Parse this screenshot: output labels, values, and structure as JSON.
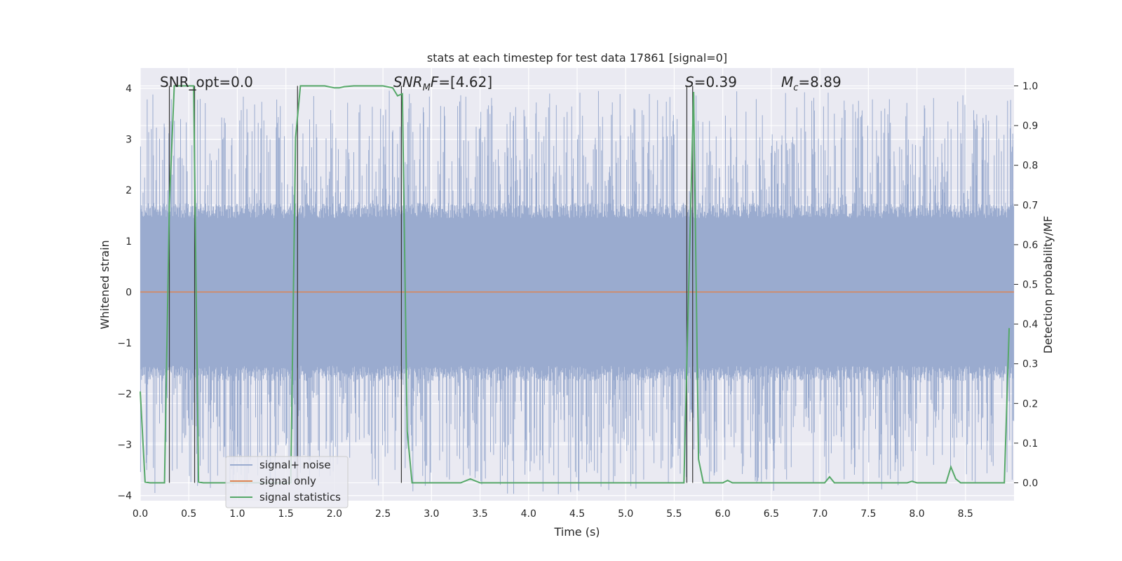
{
  "chart_data": {
    "type": "line",
    "title": "stats at each timestep for test data 17861 [signal=0]",
    "xlabel": "Time (s)",
    "ylabel": "Whitened strain",
    "ylabel_right": "Detection probability/MF",
    "xlim": [
      0,
      9.0
    ],
    "ylim": [
      -4.1,
      4.4
    ],
    "ylim_right": [
      -0.045,
      1.045
    ],
    "x_ticks": [
      0.0,
      0.5,
      1.0,
      1.5,
      2.0,
      2.5,
      3.0,
      3.5,
      4.0,
      4.5,
      5.0,
      5.5,
      6.0,
      6.5,
      7.0,
      7.5,
      8.0,
      8.5
    ],
    "x_tick_labels": [
      "0.0",
      "0.5",
      "1.0",
      "1.5",
      "2.0",
      "2.5",
      "3.0",
      "3.5",
      "4.0",
      "4.5",
      "5.0",
      "5.5",
      "6.0",
      "6.5",
      "7.0",
      "7.5",
      "8.0",
      "8.5"
    ],
    "y_ticks": [
      -4,
      -3,
      -2,
      -1,
      0,
      1,
      2,
      3,
      4
    ],
    "y_tick_labels": [
      "−4",
      "−3",
      "−2",
      "−1",
      "0",
      "1",
      "2",
      "3",
      "4"
    ],
    "y_ticks_right": [
      0.0,
      0.1,
      0.2,
      0.3,
      0.4,
      0.5,
      0.6,
      0.7,
      0.8,
      0.9,
      1.0
    ],
    "y_tick_labels_right": [
      "0.0",
      "0.1",
      "0.2",
      "0.3",
      "0.4",
      "0.5",
      "0.6",
      "0.7",
      "0.8",
      "0.9",
      "1.0"
    ],
    "grid": true,
    "legend_position": "lower-left",
    "annotations": {
      "snr_opt_prefix": "SNR_opt=",
      "snr_opt_value": "0.0",
      "snr_mf_label": "SNR",
      "snr_mf_sub": "M",
      "snr_mf_suffix": "F=",
      "snr_mf_value": "[4.62]",
      "s_label": "S",
      "s_value": "=0.39",
      "mc_label": "M",
      "mc_sub": "c",
      "mc_value": "=8.89"
    },
    "noise_series": {
      "name": "signal+ noise",
      "color": "#9AABCF",
      "typical_amplitude": 1.6,
      "max_amplitude": 3.85
    },
    "signal_series": {
      "name": "signal only",
      "color": "#DD8452",
      "values_constant": 0.0
    },
    "stat_series": {
      "name": "signal statistics",
      "color": "#55A868",
      "x": [
        0.0,
        0.05,
        0.1,
        0.15,
        0.2,
        0.25,
        0.3,
        0.35,
        0.4,
        0.45,
        0.5,
        0.55,
        0.6,
        0.65,
        0.7,
        0.75,
        0.8,
        0.85,
        0.9,
        0.95,
        1.0,
        1.05,
        1.1,
        1.15,
        1.2,
        1.25,
        1.3,
        1.35,
        1.4,
        1.45,
        1.5,
        1.55,
        1.6,
        1.65,
        1.7,
        1.8,
        1.9,
        2.0,
        2.05,
        2.1,
        2.2,
        2.3,
        2.4,
        2.5,
        2.6,
        2.65,
        2.7,
        2.75,
        2.8,
        2.9,
        3.0,
        3.1,
        3.2,
        3.3,
        3.4,
        3.5,
        3.6,
        3.7,
        3.8,
        3.9,
        4.0,
        4.1,
        4.2,
        4.3,
        4.4,
        4.5,
        4.6,
        4.7,
        4.8,
        4.9,
        5.0,
        5.1,
        5.2,
        5.3,
        5.4,
        5.5,
        5.55,
        5.6,
        5.65,
        5.7,
        5.75,
        5.8,
        5.9,
        6.0,
        6.05,
        6.1,
        6.2,
        6.3,
        6.4,
        6.5,
        6.6,
        6.7,
        6.8,
        6.9,
        7.0,
        7.05,
        7.1,
        7.15,
        7.2,
        7.3,
        7.4,
        7.5,
        7.6,
        7.7,
        7.8,
        7.9,
        7.95,
        8.0,
        8.1,
        8.2,
        8.3,
        8.35,
        8.4,
        8.45,
        8.5,
        8.6,
        8.7,
        8.8,
        8.9,
        8.95
      ],
      "values": [
        0.23,
        0.002,
        0.0,
        0.0,
        0.0,
        0.0,
        0.7,
        1.0,
        1.0,
        1.0,
        1.0,
        1.0,
        0.002,
        0.0,
        0.0,
        0.0,
        0.0,
        0.0,
        0.0,
        0.0,
        0.0,
        0.0,
        0.0,
        0.0,
        0.0,
        0.0,
        0.0,
        0.0,
        0.0,
        0.0,
        0.0,
        0.0,
        0.87,
        1.0,
        1.0,
        1.0,
        1.0,
        0.995,
        0.995,
        0.998,
        1.0,
        1.0,
        1.0,
        1.0,
        0.995,
        0.975,
        0.98,
        0.13,
        0.0,
        0.0,
        0.0,
        0.0,
        0.0,
        0.0,
        0.01,
        0.0,
        0.0,
        0.0,
        0.0,
        0.0,
        0.0,
        0.0,
        0.0,
        0.0,
        0.0,
        0.0,
        0.0,
        0.0,
        0.0,
        0.0,
        0.0,
        0.0,
        0.0,
        0.0,
        0.0,
        0.0,
        0.0,
        0.0,
        0.5,
        0.985,
        0.06,
        0.0,
        0.0,
        0.0,
        0.006,
        0.0,
        0.0,
        0.0,
        0.0,
        0.0,
        0.0,
        0.0,
        0.0,
        0.0,
        0.0,
        0.0,
        0.015,
        0.0,
        0.0,
        0.0,
        0.0,
        0.0,
        0.0,
        0.0,
        0.0,
        0.0,
        0.004,
        0.0,
        0.0,
        0.0,
        0.0,
        0.04,
        0.01,
        0.0,
        0.0,
        0.0,
        0.0,
        0.0,
        0.0,
        0.39
      ]
    },
    "vertical_markers": [
      0.3,
      0.56,
      1.62,
      2.69,
      5.63,
      5.69
    ]
  }
}
